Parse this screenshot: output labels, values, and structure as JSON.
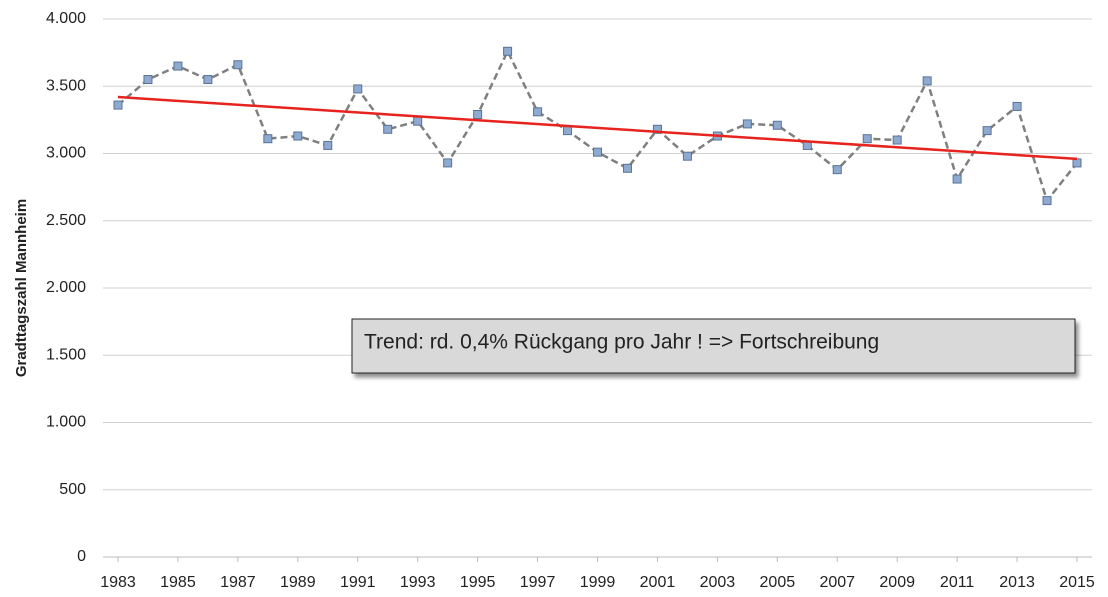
{
  "chart_data": {
    "type": "line",
    "ylabel": "Gradttagszahl Mannheim",
    "annotation": "Trend: rd. 0,4% Rückgang pro Jahr ! => Fortschreibung",
    "x": [
      1983,
      1984,
      1985,
      1986,
      1987,
      1988,
      1989,
      1990,
      1991,
      1992,
      1993,
      1994,
      1995,
      1996,
      1997,
      1998,
      1999,
      2000,
      2001,
      2002,
      2003,
      2004,
      2005,
      2006,
      2007,
      2008,
      2009,
      2010,
      2011,
      2012,
      2013,
      2014,
      2015
    ],
    "series": [
      {
        "color": "#7f7f7f",
        "marker_color": "#8eaad0",
        "marker_edge": "#5a7297",
        "values": [
          3360,
          3550,
          3650,
          3550,
          3660,
          3110,
          3130,
          3060,
          3480,
          3180,
          3240,
          2930,
          3290,
          3760,
          3310,
          3170,
          3010,
          2890,
          3180,
          2980,
          3130,
          3220,
          3210,
          3060,
          2880,
          3110,
          3100,
          3540,
          2810,
          3170,
          3350,
          2650,
          2930
        ]
      }
    ],
    "trend": {
      "x": [
        1983,
        2015
      ],
      "values": [
        3420,
        2960
      ],
      "color": "#e8231e"
    },
    "xlim": [
      1982.5,
      2015.5
    ],
    "xticks": [
      1983,
      1985,
      1987,
      1989,
      1991,
      1993,
      1995,
      1997,
      1999,
      2001,
      2003,
      2005,
      2007,
      2009,
      2011,
      2013,
      2015
    ],
    "ylim": [
      0,
      4000
    ],
    "yticks": [
      0,
      500,
      {
        "value": 1000,
        "label": "1.000"
      },
      {
        "value": 1500,
        "label": "1.500"
      },
      {
        "value": 2000,
        "label": "2.000"
      },
      {
        "value": 2500,
        "label": "2.500"
      },
      {
        "value": 3000,
        "label": "3.000"
      },
      {
        "value": 3500,
        "label": "3.500"
      },
      {
        "value": 4000,
        "label": "4.000"
      }
    ],
    "grid": true
  }
}
